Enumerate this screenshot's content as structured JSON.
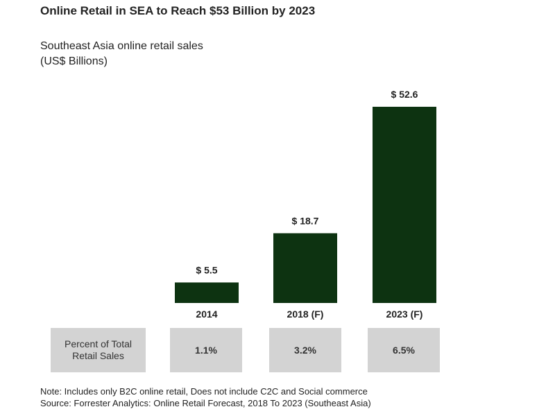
{
  "chart_data": {
    "type": "bar",
    "title": "Online Retail in SEA to Reach $53 Billion by 2023",
    "subtitle_line1": "Southeast Asia online retail sales",
    "subtitle_line2": "(US$ Billions)",
    "categories": [
      "2014",
      "2018 (F)",
      "2023 (F)"
    ],
    "values": [
      5.5,
      18.7,
      52.6
    ],
    "data_labels": [
      "$ 5.5",
      "$ 18.7",
      "$ 52.6"
    ],
    "bar_color": "#0d3311",
    "grid": false
  },
  "table": {
    "row_label": "Percent of Total Retail Sales",
    "values": [
      "1.1%",
      "3.2%",
      "6.5%"
    ]
  },
  "footer": {
    "note": "Note: Includes only B2C online retail, Does not include C2C and Social commerce",
    "source": "Source: Forrester Analytics: Online Retail Forecast, 2018 To 2023 (Southeast Asia)"
  }
}
